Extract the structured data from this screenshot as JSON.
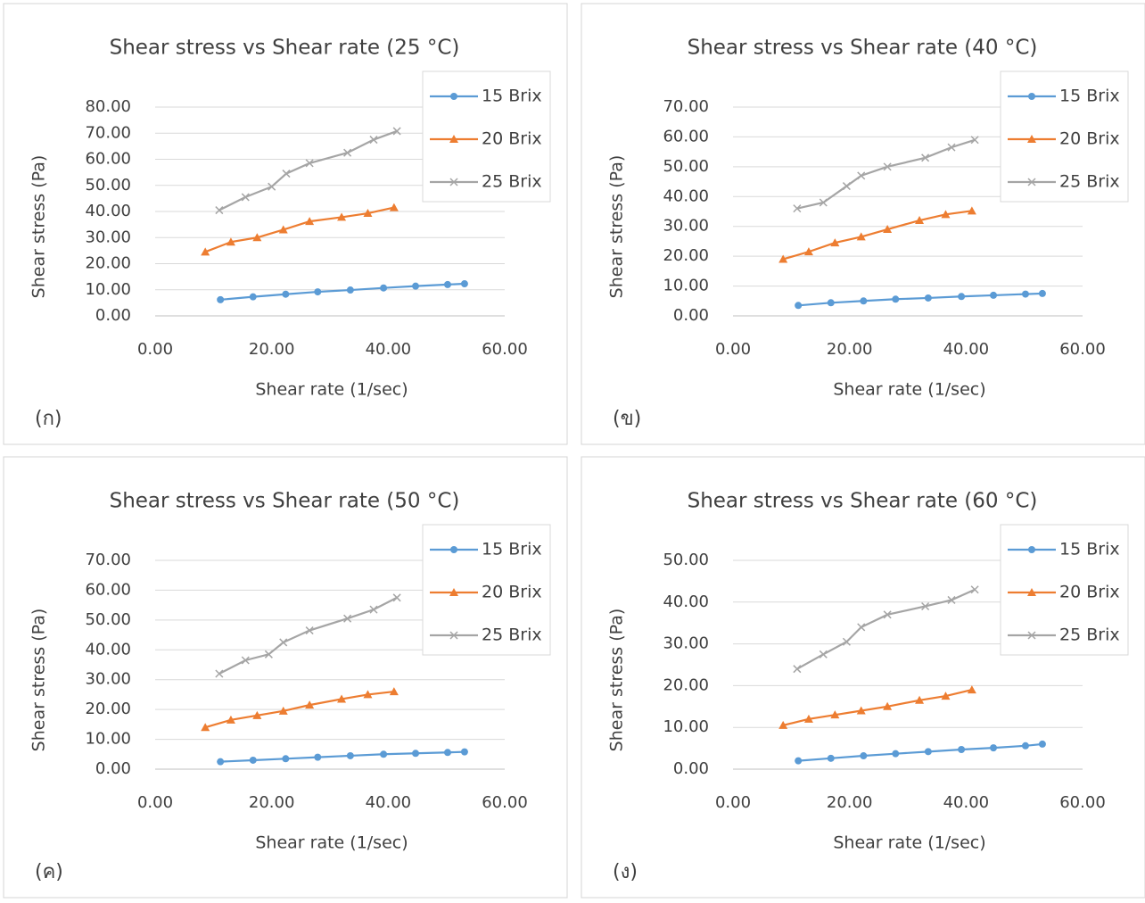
{
  "chart_data": [
    {
      "type": "line",
      "title": "Shear stress vs Shear rate (25 °C)",
      "x_label": "Shear rate (1/sec)",
      "y_label": "Shear stress (Pa)",
      "panel_label": "(ก)",
      "xlim": [
        0,
        60
      ],
      "xticks": [
        {
          "value": 0,
          "label": "0.00"
        },
        {
          "value": 20,
          "label": "20.00"
        },
        {
          "value": 40,
          "label": "40.00"
        },
        {
          "value": 60,
          "label": "60.00"
        }
      ],
      "ylim": [
        0,
        80
      ],
      "yticks": [
        {
          "value": 0,
          "label": "0.00"
        },
        {
          "value": 10,
          "label": "10.00"
        },
        {
          "value": 20,
          "label": "20.00"
        },
        {
          "value": 30,
          "label": "30.00"
        },
        {
          "value": 40,
          "label": "40.00"
        },
        {
          "value": 50,
          "label": "50.00"
        },
        {
          "value": 60,
          "label": "60.00"
        },
        {
          "value": 70,
          "label": "70.00"
        },
        {
          "value": 80,
          "label": "80.00"
        }
      ],
      "grid": true,
      "legend": "upper right",
      "series": [
        {
          "name": "15 Brix",
          "color": "#5b9bd5",
          "marker": "circle",
          "x": [
            11.2,
            16.8,
            22.4,
            27.9,
            33.5,
            39.2,
            44.7,
            50.2,
            53.1
          ],
          "values": [
            6.2,
            7.3,
            8.3,
            9.2,
            9.9,
            10.7,
            11.4,
            12.0,
            12.3
          ]
        },
        {
          "name": "20 Brix",
          "color": "#ed7d31",
          "marker": "triangle",
          "x": [
            8.6,
            13.0,
            17.5,
            22.0,
            26.5,
            32.0,
            36.5,
            41.0
          ],
          "values": [
            24.5,
            28.3,
            30.0,
            33.0,
            36.2,
            37.8,
            39.3,
            41.5
          ]
        },
        {
          "name": "25 Brix",
          "color": "#a5a5a5",
          "marker": "x",
          "x": [
            11.0,
            15.5,
            20.0,
            22.5,
            26.5,
            33.0,
            37.5,
            41.5
          ],
          "values": [
            40.5,
            45.5,
            49.5,
            54.5,
            58.5,
            62.5,
            67.5,
            70.8
          ]
        }
      ]
    },
    {
      "type": "line",
      "title": "Shear stress vs Shear rate (40 °C)",
      "x_label": "Shear rate (1/sec)",
      "y_label": "Shear stress (Pa)",
      "panel_label": "(ข)",
      "xlim": [
        0,
        60
      ],
      "xticks": [
        {
          "value": 0,
          "label": "0.00"
        },
        {
          "value": 20,
          "label": "20.00"
        },
        {
          "value": 40,
          "label": "40.00"
        },
        {
          "value": 60,
          "label": "60.00"
        }
      ],
      "ylim": [
        0,
        70
      ],
      "yticks": [
        {
          "value": 0,
          "label": "0.00"
        },
        {
          "value": 10,
          "label": "10.00"
        },
        {
          "value": 20,
          "label": "20.00"
        },
        {
          "value": 30,
          "label": "30.00"
        },
        {
          "value": 40,
          "label": "40.00"
        },
        {
          "value": 50,
          "label": "50.00"
        },
        {
          "value": 60,
          "label": "60.00"
        },
        {
          "value": 70,
          "label": "70.00"
        }
      ],
      "grid": true,
      "legend": "upper right",
      "series": [
        {
          "name": "15 Brix",
          "color": "#5b9bd5",
          "marker": "circle",
          "x": [
            11.2,
            16.8,
            22.4,
            27.9,
            33.5,
            39.2,
            44.7,
            50.2,
            53.1
          ],
          "values": [
            3.5,
            4.4,
            5.0,
            5.6,
            6.0,
            6.5,
            6.9,
            7.3,
            7.5
          ]
        },
        {
          "name": "20 Brix",
          "color": "#ed7d31",
          "marker": "triangle",
          "x": [
            8.6,
            13.0,
            17.5,
            22.0,
            26.5,
            32.0,
            36.5,
            41.0
          ],
          "values": [
            19.0,
            21.5,
            24.5,
            26.5,
            29.0,
            32.0,
            34.0,
            35.2
          ]
        },
        {
          "name": "25 Brix",
          "color": "#a5a5a5",
          "marker": "x",
          "x": [
            11.0,
            15.5,
            19.5,
            22.0,
            26.5,
            33.0,
            37.5,
            41.5
          ],
          "values": [
            36.0,
            38.0,
            43.5,
            47.0,
            50.0,
            53.0,
            56.5,
            59.0
          ]
        }
      ]
    },
    {
      "type": "line",
      "title": "Shear stress vs Shear rate (50 °C)",
      "x_label": "Shear rate (1/sec)",
      "y_label": "Shear stress (Pa)",
      "panel_label": "(ค)",
      "xlim": [
        0,
        60
      ],
      "xticks": [
        {
          "value": 0,
          "label": "0.00"
        },
        {
          "value": 20,
          "label": "20.00"
        },
        {
          "value": 40,
          "label": "40.00"
        },
        {
          "value": 60,
          "label": "60.00"
        }
      ],
      "ylim": [
        0,
        70
      ],
      "yticks": [
        {
          "value": 0,
          "label": "0.00"
        },
        {
          "value": 10,
          "label": "10.00"
        },
        {
          "value": 20,
          "label": "20.00"
        },
        {
          "value": 30,
          "label": "30.00"
        },
        {
          "value": 40,
          "label": "40.00"
        },
        {
          "value": 50,
          "label": "50.00"
        },
        {
          "value": 60,
          "label": "60.00"
        },
        {
          "value": 70,
          "label": "70.00"
        }
      ],
      "grid": true,
      "legend": "upper right",
      "series": [
        {
          "name": "15 Brix",
          "color": "#5b9bd5",
          "marker": "circle",
          "x": [
            11.2,
            16.8,
            22.4,
            27.9,
            33.5,
            39.2,
            44.7,
            50.2,
            53.1
          ],
          "values": [
            2.5,
            3.0,
            3.5,
            4.0,
            4.5,
            5.0,
            5.3,
            5.6,
            5.8
          ]
        },
        {
          "name": "20 Brix",
          "color": "#ed7d31",
          "marker": "triangle",
          "x": [
            8.6,
            13.0,
            17.5,
            22.0,
            26.5,
            32.0,
            36.5,
            41.0
          ],
          "values": [
            14.0,
            16.5,
            18.0,
            19.5,
            21.5,
            23.5,
            25.0,
            26.0
          ]
        },
        {
          "name": "25 Brix",
          "color": "#a5a5a5",
          "marker": "x",
          "x": [
            11.0,
            15.5,
            19.5,
            22.0,
            26.5,
            33.0,
            37.5,
            41.5
          ],
          "values": [
            32.0,
            36.5,
            38.5,
            42.5,
            46.5,
            50.5,
            53.5,
            57.5
          ]
        }
      ]
    },
    {
      "type": "line",
      "title": "Shear stress vs Shear rate (60 °C)",
      "x_label": "Shear rate (1/sec)",
      "y_label": "Shear stress (Pa)",
      "panel_label": "(ง)",
      "xlim": [
        0,
        60
      ],
      "xticks": [
        {
          "value": 0,
          "label": "0.00"
        },
        {
          "value": 20,
          "label": "20.00"
        },
        {
          "value": 40,
          "label": "40.00"
        },
        {
          "value": 60,
          "label": "60.00"
        }
      ],
      "ylim": [
        0,
        50
      ],
      "yticks": [
        {
          "value": 0,
          "label": "0.00"
        },
        {
          "value": 10,
          "label": "10.00"
        },
        {
          "value": 20,
          "label": "20.00"
        },
        {
          "value": 30,
          "label": "30.00"
        },
        {
          "value": 40,
          "label": "40.00"
        },
        {
          "value": 50,
          "label": "50.00"
        }
      ],
      "grid": true,
      "legend": "upper right",
      "series": [
        {
          "name": "15 Brix",
          "color": "#5b9bd5",
          "marker": "circle",
          "x": [
            11.2,
            16.8,
            22.4,
            27.9,
            33.5,
            39.2,
            44.7,
            50.2,
            53.1
          ],
          "values": [
            2.0,
            2.6,
            3.2,
            3.7,
            4.2,
            4.7,
            5.1,
            5.6,
            6.0
          ]
        },
        {
          "name": "20 Brix",
          "color": "#ed7d31",
          "marker": "triangle",
          "x": [
            8.6,
            13.0,
            17.5,
            22.0,
            26.5,
            32.0,
            36.5,
            41.0
          ],
          "values": [
            10.5,
            12.0,
            13.0,
            14.0,
            15.0,
            16.5,
            17.5,
            19.0
          ]
        },
        {
          "name": "25 Brix",
          "color": "#a5a5a5",
          "marker": "x",
          "x": [
            11.0,
            15.5,
            19.5,
            22.0,
            26.5,
            33.0,
            37.5,
            41.5
          ],
          "values": [
            24.0,
            27.5,
            30.5,
            34.0,
            37.0,
            39.0,
            40.5,
            43.0
          ]
        }
      ]
    }
  ]
}
